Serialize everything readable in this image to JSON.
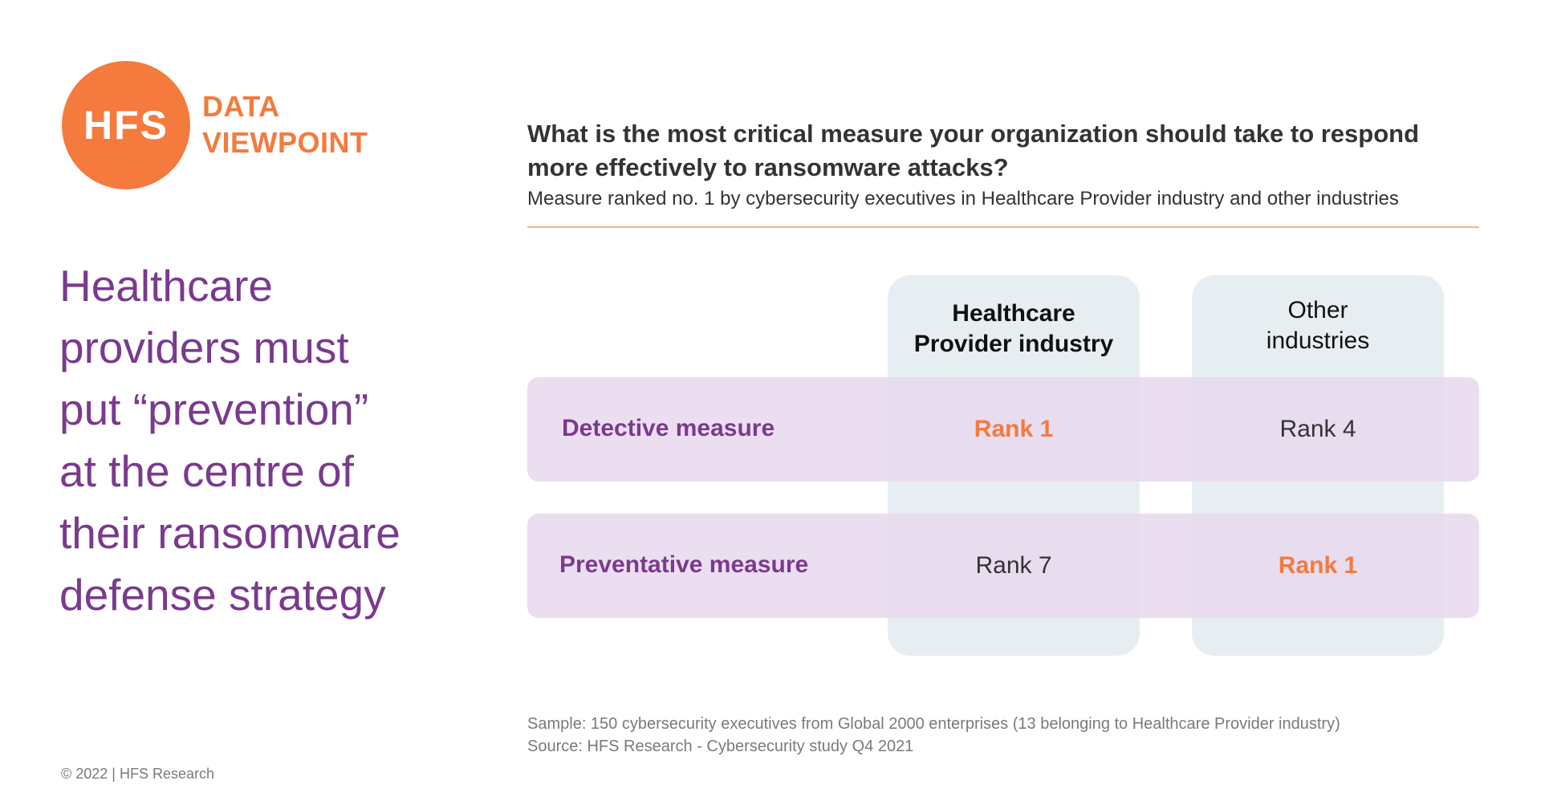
{
  "logo": {
    "mark": "HFS",
    "tag_line1": "DATA",
    "tag_line2": "VIEWPOINT",
    "color": "#f47a3e"
  },
  "headline": [
    "Healthcare",
    "providers must",
    "put “prevention”",
    "at the centre of",
    "their ransomware",
    "defense strategy"
  ],
  "chart_data": {
    "type": "table",
    "title_lines": [
      "What is the most critical measure your organization should take to respond",
      "more effectively to ransomware attacks?"
    ],
    "subtitle": "Measure ranked no. 1 by cybersecurity executives in Healthcare Provider industry and other industries",
    "columns": [
      {
        "lines": [
          "Healthcare",
          "Provider industry"
        ],
        "bold": true
      },
      {
        "lines": [
          "Other",
          "industries"
        ],
        "bold": false
      }
    ],
    "rows": [
      {
        "label": "Detective measure",
        "cells": [
          "Rank 1",
          "Rank 4"
        ],
        "highlight": [
          true,
          false
        ]
      },
      {
        "label": "Preventative measure",
        "cells": [
          "Rank 7",
          "Rank 1"
        ],
        "highlight": [
          false,
          true
        ]
      }
    ],
    "colors": {
      "highlight": "#f47a3e",
      "row_label": "#7a3a8e",
      "row_band": "#e8d8ee",
      "column_band": "#e3ebef"
    }
  },
  "footer": {
    "sample": "Sample: 150 cybersecurity executives from Global 2000 enterprises (13 belonging to Healthcare Provider industry)",
    "source": "Source: HFS Research - Cybersecurity study Q4 2021",
    "copyright": "© 2022 | HFS Research"
  }
}
